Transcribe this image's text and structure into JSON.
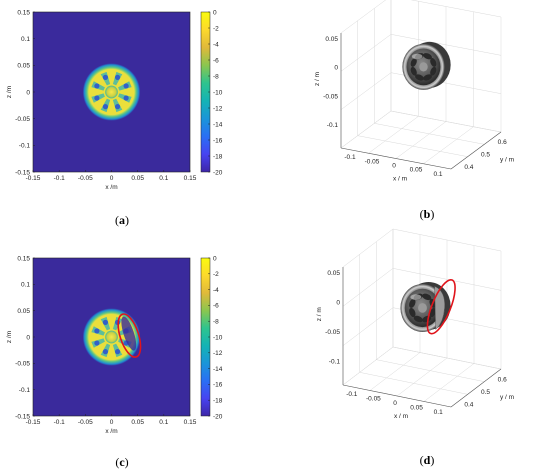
{
  "captions": [
    "a",
    "b",
    "c",
    "d"
  ],
  "colors": {
    "background_field": "#3a2a9c",
    "colormap": [
      "#3e26a8",
      "#4743f1",
      "#2a6ff4",
      "#1a95d9",
      "#14b3b5",
      "#2ec48e",
      "#8bc64f",
      "#e0b93a",
      "#fcd92c",
      "#f9fb0e"
    ],
    "defect_marker": "#e0141b",
    "axes": "#222222",
    "grid3d": "#d9d9d9",
    "wheel_dark": "#3d3d3d",
    "wheel_light": "#bdbdbd"
  },
  "chart_data": [
    {
      "id": "a",
      "type": "heatmap",
      "xlabel": "x /m",
      "ylabel": "z /m",
      "xlim": [
        -0.15,
        0.15
      ],
      "ylim": [
        -0.15,
        0.15
      ],
      "xticks": [
        "-0.15",
        "-0.1",
        "-0.05",
        "0",
        "0.05",
        "0.1",
        "0.15"
      ],
      "yticks": [
        "0.15",
        "0.1",
        "0.05",
        "0",
        "-0.05",
        "-0.1",
        "-0.15"
      ],
      "colorbar": {
        "min": -20,
        "max": 0,
        "ticks": [
          "0",
          "-2",
          "-4",
          "-6",
          "-8",
          "-10",
          "-12",
          "-14",
          "-16",
          "-18",
          "-20"
        ]
      },
      "object": {
        "center": [
          0,
          0
        ],
        "radius": 0.055,
        "spokes": 8,
        "defect": false
      }
    },
    {
      "id": "b",
      "type": "surface3d",
      "xlabel": "x / m",
      "ylabel": "y / m",
      "zlabel": "z / m",
      "xticks": [
        "-0.1",
        "-0.05",
        "0",
        "0.05",
        "0.1"
      ],
      "yticks": [
        "0.4",
        "0.5",
        "0.6"
      ],
      "zticks": [
        "0.05",
        "0",
        "-0.05",
        "-0.1"
      ],
      "defect": false
    },
    {
      "id": "c",
      "type": "heatmap",
      "xlabel": "x /m",
      "ylabel": "z /m",
      "xlim": [
        -0.15,
        0.15
      ],
      "ylim": [
        -0.15,
        0.15
      ],
      "xticks": [
        "-0.15",
        "-0.1",
        "-0.05",
        "0",
        "0.05",
        "0.1",
        "0.15"
      ],
      "yticks": [
        "0.15",
        "0.1",
        "0.05",
        "0",
        "-0.05",
        "-0.1",
        "-0.15"
      ],
      "colorbar": {
        "min": -20,
        "max": 0,
        "ticks": [
          "0",
          "-2",
          "-4",
          "-6",
          "-8",
          "-10",
          "-12",
          "-14",
          "-16",
          "-18",
          "-20"
        ]
      },
      "object": {
        "center": [
          0,
          0
        ],
        "radius": 0.055,
        "spokes": 8,
        "defect": true
      }
    },
    {
      "id": "d",
      "type": "surface3d",
      "xlabel": "x / m",
      "ylabel": "y / m",
      "zlabel": "z / m",
      "xticks": [
        "-0.1",
        "-0.05",
        "0",
        "0.05",
        "0.1"
      ],
      "yticks": [
        "0.4",
        "0.5",
        "0.6"
      ],
      "zticks": [
        "0.05",
        "0",
        "-0.05",
        "-0.1"
      ],
      "defect": true
    }
  ]
}
